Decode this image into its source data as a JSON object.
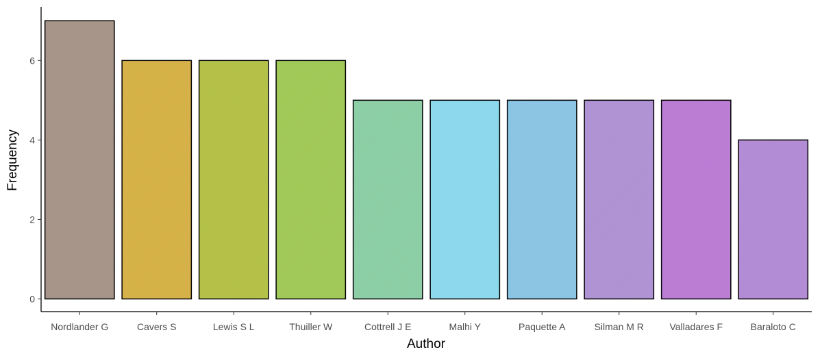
{
  "chart_data": {
    "type": "bar",
    "categories": [
      "Nordlander G",
      "Cavers S",
      "Lewis S L",
      "Thuiller W",
      "Cottrell J E",
      "Malhi Y",
      "Paquette A",
      "Silman M R",
      "Valladares F",
      "Baraloto C"
    ],
    "values": [
      7,
      6,
      6,
      6,
      5,
      5,
      5,
      5,
      5,
      4
    ],
    "colors": [
      "#a8978a",
      "#d9b44a",
      "#b7c44a",
      "#a3cc5a",
      "#8fd1a8",
      "#8fdcf0",
      "#8dc8e8",
      "#b295d6",
      "#bd7fd8",
      "#b58ed8"
    ],
    "xlabel": "Author",
    "ylabel": "Frequency",
    "yticks": [
      0,
      2,
      4,
      6
    ],
    "ylim": [
      -0.32,
      7.35
    ],
    "grid": false,
    "legend": "none"
  }
}
